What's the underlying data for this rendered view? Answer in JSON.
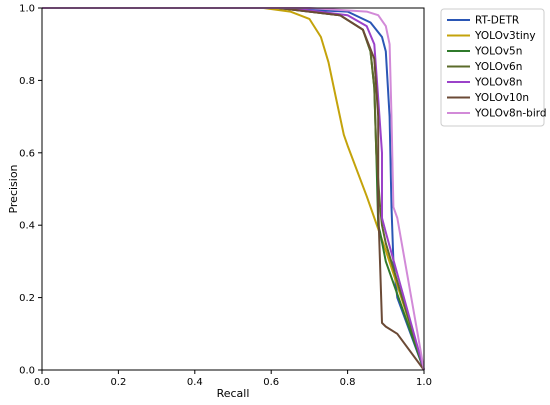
{
  "chart_data": {
    "type": "line",
    "title": "",
    "xlabel": "Recall",
    "ylabel": "Precision",
    "xlim": [
      0,
      1
    ],
    "ylim": [
      0,
      1
    ],
    "xticks": [
      "0.0",
      "0.2",
      "0.4",
      "0.6",
      "0.8",
      "1.0"
    ],
    "yticks": [
      "0.0",
      "0.2",
      "0.4",
      "0.6",
      "0.8",
      "1.0"
    ],
    "grid": false,
    "legend_position": "outside-top-right",
    "series": [
      {
        "name": "RT-DETR",
        "color": "#2a56b5",
        "x": [
          0,
          0.6,
          0.8,
          0.86,
          0.89,
          0.9,
          0.91,
          0.915,
          0.92,
          0.93,
          1.0
        ],
        "y": [
          1,
          1,
          0.99,
          0.96,
          0.92,
          0.88,
          0.7,
          0.45,
          0.3,
          0.2,
          0
        ]
      },
      {
        "name": "YOLOv3tiny",
        "color": "#c4a30b",
        "x": [
          0,
          0.58,
          0.65,
          0.7,
          0.73,
          0.75,
          0.77,
          0.79,
          0.8,
          0.85,
          0.9,
          0.95,
          1.0
        ],
        "y": [
          1,
          1,
          0.99,
          0.97,
          0.92,
          0.85,
          0.75,
          0.65,
          0.62,
          0.48,
          0.33,
          0.17,
          0
        ]
      },
      {
        "name": "YOLOv5n",
        "color": "#2f7a2b",
        "x": [
          0,
          0.62,
          0.78,
          0.84,
          0.86,
          0.87,
          0.875,
          0.88,
          0.885,
          0.9,
          1.0
        ],
        "y": [
          1,
          1,
          0.98,
          0.94,
          0.88,
          0.78,
          0.6,
          0.4,
          0.38,
          0.3,
          0
        ]
      },
      {
        "name": "YOLOv6n",
        "color": "#5b6b2a",
        "x": [
          0,
          0.62,
          0.78,
          0.84,
          0.86,
          0.87,
          0.875,
          0.885,
          0.89,
          0.9,
          1.0
        ],
        "y": [
          1,
          1,
          0.98,
          0.94,
          0.88,
          0.78,
          0.6,
          0.45,
          0.4,
          0.35,
          0
        ]
      },
      {
        "name": "YOLOv8n",
        "color": "#9b42c9",
        "x": [
          0,
          0.65,
          0.8,
          0.85,
          0.87,
          0.88,
          0.89,
          0.89,
          0.9,
          1.0
        ],
        "y": [
          1,
          1,
          0.98,
          0.95,
          0.9,
          0.75,
          0.6,
          0.42,
          0.38,
          0
        ]
      },
      {
        "name": "YOLOv10n",
        "color": "#6b4a36",
        "x": [
          0,
          0.62,
          0.78,
          0.84,
          0.87,
          0.88,
          0.88,
          0.89,
          0.9,
          0.93,
          1.0
        ],
        "y": [
          1,
          1,
          0.98,
          0.94,
          0.86,
          0.7,
          0.45,
          0.13,
          0.12,
          0.1,
          0
        ]
      },
      {
        "name": "YOLOv8n-bird",
        "color": "#d28ad8",
        "x": [
          0,
          0.7,
          0.85,
          0.88,
          0.9,
          0.91,
          0.915,
          0.92,
          0.93,
          1.0
        ],
        "y": [
          1,
          1,
          0.99,
          0.98,
          0.95,
          0.9,
          0.7,
          0.45,
          0.42,
          0
        ]
      }
    ]
  }
}
